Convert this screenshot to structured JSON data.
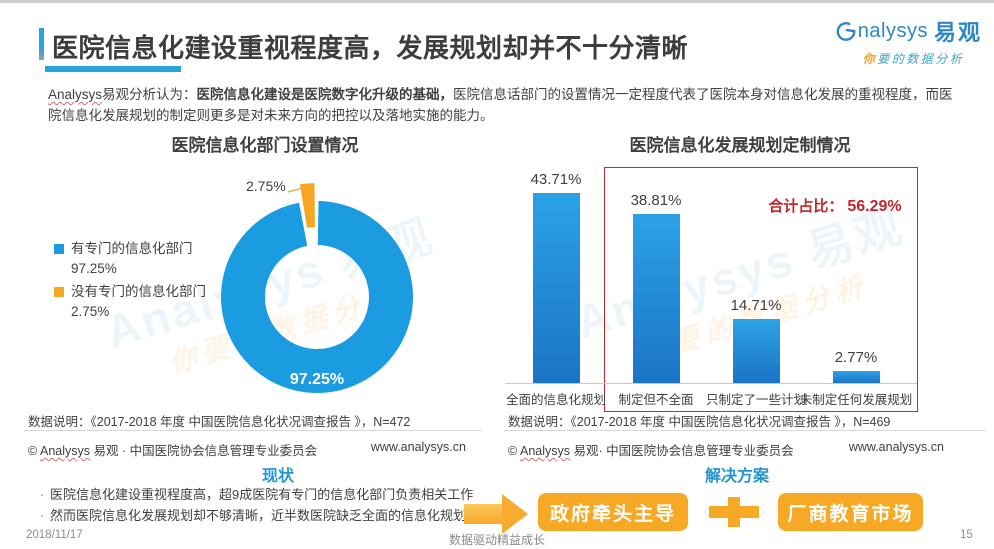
{
  "header": {
    "title": "医院信息化建设重视程度高，发展规划却并不十分清晰",
    "logo": {
      "en": "nalysys",
      "cn": "易观",
      "tagline_first": "你",
      "tagline_rest": "要的数据分析"
    }
  },
  "intro": {
    "brand": "Analysys",
    "prefix_rest": "易观分析认为：",
    "bold": "医院信息化建设是医院数字化升级的基础，",
    "rest": "医院信息话部门的设置情况一定程度代表了医院本身对信息化发展的重视程度，而医院信息化发展规划的制定则更多是对未来方向的把控以及落地实施的能力。"
  },
  "watermark": {
    "line1": "Analysys 易观",
    "line2": "你要的数据分析"
  },
  "chart_data": [
    {
      "type": "pie",
      "style": "donut, second slice exploded at top",
      "title": "医院信息化部门设置情况",
      "labels": [
        "有专门的信息化部门",
        "没有专门的信息化部门"
      ],
      "values": [
        97.25,
        2.75
      ],
      "value_labels": [
        "97.25%",
        "2.75%"
      ],
      "unit": "%",
      "colors": [
        "#1b9ce1",
        "#f5a623"
      ],
      "note": "数据说明：《2017-2018 年度 中国医院信息化状况调查报告 》，N=472"
    },
    {
      "type": "bar",
      "title": "医院信息化发展规划定制情况",
      "categories": [
        "全面的信息化规划",
        "制定但不全面",
        "只制定了一些计划",
        "未制定任何发展规划"
      ],
      "values": [
        43.71,
        38.81,
        14.71,
        2.77
      ],
      "value_labels": [
        "43.71%",
        "38.81%",
        "14.71%",
        "2.77%"
      ],
      "unit": "%",
      "ylim": [
        0,
        50
      ],
      "bar_color_top": "#2ba2e6",
      "bar_color_bottom": "#1b74c6",
      "grid": false,
      "annotation": {
        "label": "合计占比：",
        "value": "56.29%",
        "box_categories": [
          "制定但不全面",
          "只制定了一些计划",
          "未制定任何发展规划"
        ],
        "box_color": "#bf2c34"
      },
      "note": "数据说明：《2017-2018 年度 中国医院信息化状况调查报告 》，N=469"
    }
  ],
  "source_left": {
    "copy_prefix": "© ",
    "copy_brand": "Analysys",
    "copy_rest": " 易观 · 中国医院协会信息管理专业委员会",
    "website": "www.analysys.cn"
  },
  "source_right": {
    "copy_prefix": "© ",
    "copy_brand": "Analysys",
    "copy_rest": " 易观· 中国医院协会信息管理专业委员会",
    "website": "www.analysys.cn"
  },
  "bottom": {
    "status_title": "现状",
    "bullet_marker": "·",
    "bullets": [
      "医院信息化建设重视程度高，超9成医院有专门的信息化部门负责相关工作",
      "然而医院信息化发展规划却不够清晰，近半数医院缺乏全面的信息化规划"
    ],
    "solution_title": "解决方案",
    "solution_1": "政府牵头主导",
    "solution_2": "厂商教育市场"
  },
  "footer": {
    "date": "2018/11/17",
    "slogan": "数据驱动精益成长",
    "page": "15"
  }
}
